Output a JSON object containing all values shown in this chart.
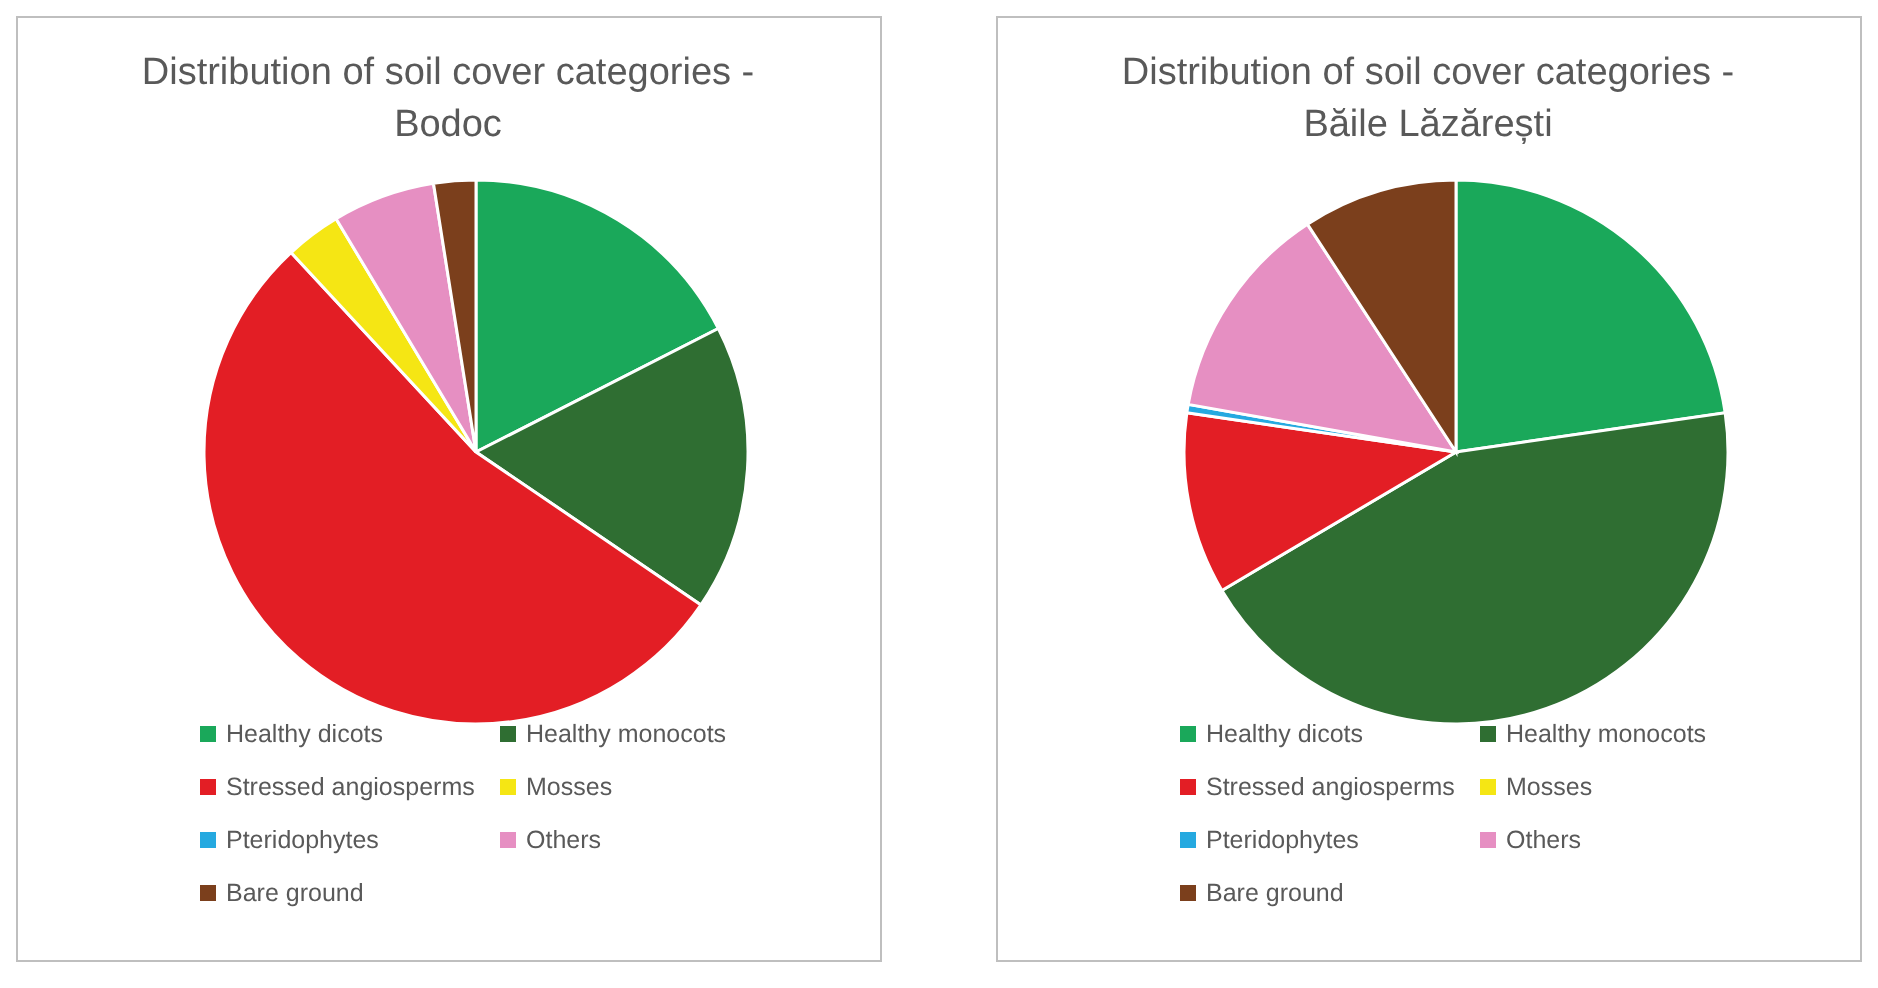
{
  "chart_data": [
    {
      "type": "pie",
      "title": "Distribution of soil cover categories - Bodoc",
      "categories": [
        "Healthy dicots",
        "Healthy monocots",
        "Stressed angiosperms",
        "Mosses",
        "Pteridophytes",
        "Others",
        "Bare ground"
      ],
      "values": [
        17.5,
        17,
        53.6,
        3.3,
        0,
        6.1,
        2.5
      ],
      "colors": [
        "#1aa85a",
        "#2f6e32",
        "#e31e25",
        "#f5e614",
        "#25a9e0",
        "#e68fc2",
        "#7b3f1c"
      ],
      "legend": "bottom"
    },
    {
      "type": "pie",
      "title": "Distribution of soil cover categories - Băile Lăzărești",
      "categories": [
        "Healthy dicots",
        "Healthy monocots",
        "Stressed angiosperms",
        "Mosses",
        "Pteridophytes",
        "Others",
        "Bare ground"
      ],
      "values": [
        22.7,
        43.8,
        10.8,
        0,
        0.5,
        13,
        9.2
      ],
      "colors": [
        "#1aa85a",
        "#2f6e32",
        "#e31e25",
        "#f5e614",
        "#25a9e0",
        "#e68fc2",
        "#7b3f1c"
      ],
      "legend": "bottom"
    }
  ]
}
